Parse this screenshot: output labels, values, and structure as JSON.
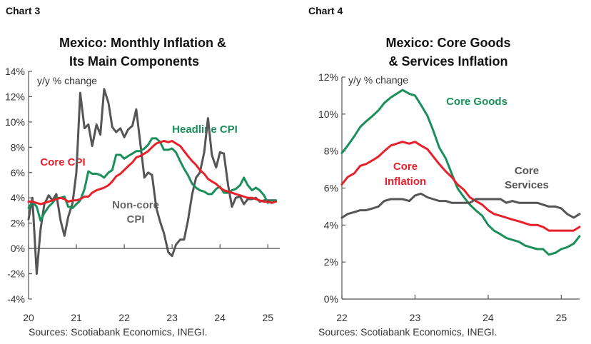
{
  "chart_data": [
    {
      "type": "line",
      "label": "Chart 3",
      "title_lines": [
        "Mexico: Monthly Inflation &",
        "Its Main Components"
      ],
      "units_label": "y/y % change",
      "ylim": [
        -4,
        14
      ],
      "y_ticks": [
        "-4%",
        "-2%",
        "0%",
        "2%",
        "4%",
        "6%",
        "8%",
        "10%",
        "12%",
        "14%"
      ],
      "x_ticks": [
        "20",
        "21",
        "22",
        "23",
        "24",
        "25"
      ],
      "source": "Sources: Scotiabank Economics, INEGI.",
      "series": [
        {
          "name": "Non-core CPI",
          "color": "#555555",
          "x": [
            20.0,
            20.08,
            20.17,
            20.25,
            20.33,
            20.42,
            20.5,
            20.58,
            20.67,
            20.75,
            20.83,
            20.92,
            21.0,
            21.08,
            21.17,
            21.25,
            21.33,
            21.42,
            21.5,
            21.58,
            21.67,
            21.75,
            21.83,
            21.92,
            22.0,
            22.08,
            22.17,
            22.25,
            22.33,
            22.42,
            22.5,
            22.58,
            22.67,
            22.75,
            22.83,
            22.92,
            23.0,
            23.08,
            23.17,
            23.25,
            23.33,
            23.42,
            23.5,
            23.58,
            23.67,
            23.75,
            23.83,
            23.92,
            24.0,
            24.08,
            24.17,
            24.25,
            24.33,
            24.42,
            24.5,
            24.58,
            24.67,
            24.75,
            24.83,
            24.92,
            25.0,
            25.08,
            25.17
          ],
          "values": [
            2.3,
            4.0,
            -2.0,
            1.5,
            3.5,
            4.2,
            3.8,
            4.3,
            2.2,
            1.0,
            2.5,
            3.6,
            6.0,
            12.3,
            9.5,
            9.8,
            8.1,
            9.8,
            9.0,
            12.6,
            11.5,
            9.6,
            9.2,
            9.5,
            8.8,
            9.4,
            9.7,
            11.0,
            8.5,
            5.6,
            6.0,
            5.8,
            3.2,
            2.1,
            1.2,
            -0.3,
            -0.6,
            0.3,
            0.7,
            0.7,
            2.2,
            4.3,
            5.6,
            6.0,
            7.6,
            10.3,
            7.4,
            6.4,
            7.6,
            7.5,
            5.0,
            3.3,
            4.0,
            4.1,
            3.5,
            3.9,
            3.9,
            4.0,
            3.7,
            3.8,
            3.8,
            3.8,
            3.8
          ]
        },
        {
          "name": "Headline CPI",
          "color": "#1a8f5a",
          "x": [
            20.0,
            20.08,
            20.17,
            20.25,
            20.33,
            20.42,
            20.5,
            20.58,
            20.67,
            20.75,
            20.83,
            20.92,
            21.0,
            21.08,
            21.17,
            21.25,
            21.33,
            21.42,
            21.5,
            21.58,
            21.67,
            21.75,
            21.83,
            21.92,
            22.0,
            22.08,
            22.17,
            22.25,
            22.33,
            22.42,
            22.5,
            22.58,
            22.67,
            22.75,
            22.83,
            22.92,
            23.0,
            23.08,
            23.17,
            23.25,
            23.33,
            23.42,
            23.5,
            23.58,
            23.67,
            23.75,
            23.83,
            23.92,
            24.0,
            24.08,
            24.17,
            24.25,
            24.33,
            24.42,
            24.5,
            24.58,
            24.67,
            24.75,
            24.83,
            24.92,
            25.0,
            25.08,
            25.17
          ],
          "values": [
            3.2,
            3.7,
            3.3,
            2.2,
            2.8,
            3.3,
            3.6,
            4.0,
            4.0,
            4.1,
            3.3,
            3.2,
            3.5,
            3.8,
            4.7,
            6.1,
            5.9,
            5.9,
            5.8,
            5.6,
            6.0,
            6.2,
            7.4,
            7.4,
            7.1,
            7.3,
            7.5,
            7.7,
            7.7,
            7.9,
            8.2,
            8.7,
            8.7,
            8.4,
            7.8,
            7.8,
            7.9,
            7.6,
            6.9,
            6.3,
            5.8,
            5.1,
            4.8,
            4.6,
            4.5,
            4.3,
            4.3,
            4.7,
            4.9,
            4.4,
            4.4,
            4.6,
            4.7,
            5.0,
            5.6,
            5.0,
            4.6,
            4.8,
            4.6,
            4.2,
            3.6,
            3.8,
            3.8
          ]
        },
        {
          "name": "Core CPI",
          "color": "#e8202a",
          "x": [
            20.0,
            20.08,
            20.17,
            20.25,
            20.33,
            20.42,
            20.5,
            20.58,
            20.67,
            20.75,
            20.83,
            20.92,
            21.0,
            21.08,
            21.17,
            21.25,
            21.33,
            21.42,
            21.5,
            21.58,
            21.67,
            21.75,
            21.83,
            21.92,
            22.0,
            22.08,
            22.17,
            22.25,
            22.33,
            22.42,
            22.5,
            22.58,
            22.67,
            22.75,
            22.83,
            22.92,
            23.0,
            23.08,
            23.17,
            23.25,
            23.33,
            23.42,
            23.5,
            23.58,
            23.67,
            23.75,
            23.83,
            23.92,
            24.0,
            24.08,
            24.17,
            24.25,
            24.33,
            24.42,
            24.5,
            24.58,
            24.67,
            24.75,
            24.83,
            24.92,
            25.0,
            25.08,
            25.17
          ],
          "values": [
            3.7,
            3.7,
            3.6,
            3.5,
            3.6,
            3.7,
            3.8,
            3.9,
            4.0,
            3.9,
            3.7,
            3.8,
            3.8,
            3.9,
            4.1,
            4.1,
            4.4,
            4.6,
            4.7,
            4.8,
            5.0,
            5.3,
            5.7,
            5.9,
            6.2,
            6.5,
            6.8,
            7.2,
            7.3,
            7.5,
            7.7,
            8.0,
            8.3,
            8.4,
            8.5,
            8.4,
            8.5,
            8.3,
            8.1,
            7.7,
            7.3,
            6.9,
            6.6,
            6.2,
            5.9,
            5.5,
            5.3,
            5.1,
            4.8,
            4.6,
            4.5,
            4.4,
            4.3,
            4.2,
            4.1,
            4.0,
            4.0,
            3.9,
            3.8,
            3.7,
            3.7,
            3.6,
            3.7
          ]
        }
      ],
      "annotations": [
        "Headline CPI",
        "Core CPI",
        "Non-core",
        "CPI"
      ]
    },
    {
      "type": "line",
      "label": "Chart 4",
      "title_lines": [
        "Mexico: Core Goods",
        "& Services Inflation"
      ],
      "units_label": "y/y % change",
      "ylim": [
        0,
        12
      ],
      "y_ticks": [
        "0%",
        "2%",
        "4%",
        "6%",
        "8%",
        "10%",
        "12%"
      ],
      "x_ticks": [
        "22",
        "23",
        "24",
        "25"
      ],
      "source": "Sources: Scotiabank Economics, INEGI.",
      "series": [
        {
          "name": "Core Goods",
          "color": "#1a8f5a",
          "x": [
            22.0,
            22.08,
            22.17,
            22.25,
            22.33,
            22.42,
            22.5,
            22.58,
            22.67,
            22.75,
            22.83,
            22.92,
            23.0,
            23.08,
            23.17,
            23.25,
            23.33,
            23.42,
            23.5,
            23.58,
            23.67,
            23.75,
            23.83,
            23.92,
            24.0,
            24.08,
            24.17,
            24.25,
            24.33,
            24.42,
            24.5,
            24.58,
            24.67,
            24.75,
            24.83,
            24.92,
            25.0,
            25.08,
            25.17,
            25.25
          ],
          "values": [
            7.9,
            8.3,
            8.8,
            9.3,
            9.6,
            9.9,
            10.2,
            10.6,
            10.9,
            11.1,
            11.3,
            11.1,
            11.0,
            10.5,
            9.9,
            9.1,
            8.2,
            7.6,
            6.8,
            6.0,
            5.5,
            5.1,
            4.8,
            4.5,
            4.0,
            3.7,
            3.5,
            3.3,
            3.2,
            3.1,
            2.9,
            2.8,
            2.7,
            2.7,
            2.4,
            2.5,
            2.7,
            2.8,
            3.0,
            3.4
          ]
        },
        {
          "name": "Core Inflation",
          "color": "#e8202a",
          "x": [
            22.0,
            22.08,
            22.17,
            22.25,
            22.33,
            22.42,
            22.5,
            22.58,
            22.67,
            22.75,
            22.83,
            22.92,
            23.0,
            23.08,
            23.17,
            23.25,
            23.33,
            23.42,
            23.5,
            23.58,
            23.67,
            23.75,
            23.83,
            23.92,
            24.0,
            24.08,
            24.17,
            24.25,
            24.33,
            24.42,
            24.5,
            24.58,
            24.67,
            24.75,
            24.83,
            24.92,
            25.0,
            25.08,
            25.17,
            25.25
          ],
          "values": [
            6.2,
            6.6,
            6.8,
            7.2,
            7.3,
            7.5,
            7.7,
            8.0,
            8.3,
            8.4,
            8.5,
            8.4,
            8.5,
            8.3,
            8.1,
            7.7,
            7.3,
            6.9,
            6.6,
            6.2,
            5.9,
            5.5,
            5.3,
            5.1,
            4.8,
            4.6,
            4.5,
            4.4,
            4.3,
            4.2,
            4.1,
            4.0,
            4.0,
            3.9,
            3.7,
            3.7,
            3.7,
            3.7,
            3.7,
            3.9
          ]
        },
        {
          "name": "Core Services",
          "color": "#555555",
          "x": [
            22.0,
            22.08,
            22.17,
            22.25,
            22.33,
            22.42,
            22.5,
            22.58,
            22.67,
            22.75,
            22.83,
            22.92,
            23.0,
            23.08,
            23.17,
            23.25,
            23.33,
            23.42,
            23.5,
            23.58,
            23.67,
            23.75,
            23.83,
            23.92,
            24.0,
            24.08,
            24.17,
            24.25,
            24.33,
            24.42,
            24.5,
            24.58,
            24.67,
            24.75,
            24.83,
            24.92,
            25.0,
            25.08,
            25.17,
            25.25
          ],
          "values": [
            4.4,
            4.6,
            4.7,
            4.8,
            4.8,
            4.9,
            5.0,
            5.3,
            5.4,
            5.4,
            5.4,
            5.3,
            5.6,
            5.7,
            5.5,
            5.4,
            5.3,
            5.3,
            5.2,
            5.2,
            5.2,
            5.2,
            5.4,
            5.4,
            5.4,
            5.4,
            5.4,
            5.2,
            5.3,
            5.2,
            5.2,
            5.2,
            5.2,
            5.1,
            5.0,
            5.0,
            4.9,
            4.6,
            4.4,
            4.6
          ]
        }
      ],
      "annotations": [
        "Core Goods",
        "Core",
        "Inflation",
        "Core",
        "Services"
      ]
    }
  ]
}
